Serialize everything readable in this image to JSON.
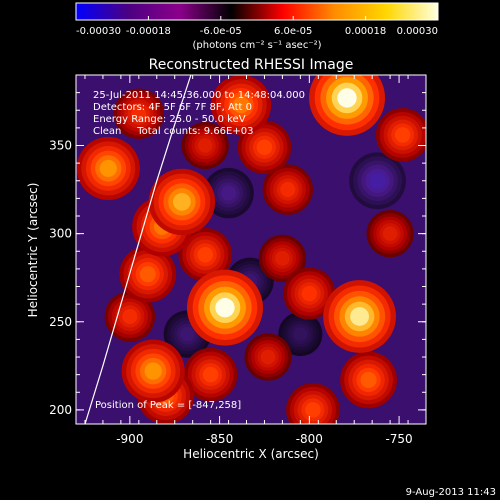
{
  "colorbar": {
    "tick_labels": [
      "-0.00030",
      "-0.00018",
      "-6.0e-05",
      "6.0e-05",
      "0.00018",
      "0.00030"
    ],
    "ticks": [
      -0.0003,
      -0.00018,
      -6e-05,
      6e-05,
      0.00018,
      0.0003
    ],
    "range": [
      -0.0003,
      0.0003
    ],
    "unit_label": "(photons cm⁻² s⁻¹ asec⁻²)",
    "colors": [
      "#0000ff",
      "#4b0082",
      "#8b008b",
      "#000000",
      "#ff0000",
      "#ff8c00",
      "#ffd700",
      "#ffffe0"
    ]
  },
  "chart_data": {
    "type": "heatmap",
    "title": "Reconstructed RHESSI Image",
    "annotations": [
      "25-Jul-2011 14:45:36.000 to 14:48:04.000",
      "Detectors: 4F 5F 6F 7F 8F, Att 0",
      "Energy Range: 25.0 - 50.0 keV",
      "Clean     Total counts: 9.66E+03"
    ],
    "peak_label": "Position of Peak = [-847,258]",
    "peak": [
      -847,
      258
    ],
    "xlabel": "Heliocentric X (arcsec)",
    "ylabel": "Heliocentric Y (arcsec)",
    "xlim": [
      -930,
      -735
    ],
    "ylim": [
      192,
      390
    ],
    "xticks": [
      -900,
      -850,
      -800,
      -750
    ],
    "yticks": [
      200,
      250,
      300,
      350
    ],
    "xtick_labels": [
      "-900",
      "-850",
      "-800",
      "-750"
    ],
    "ytick_labels": [
      "200",
      "250",
      "300",
      "350"
    ],
    "limb_curve": [
      [
        -925,
        192
      ],
      [
        -915,
        225
      ],
      [
        -905,
        260
      ],
      [
        -895,
        295
      ],
      [
        -885,
        330
      ],
      [
        -875,
        362
      ],
      [
        -866,
        390
      ]
    ],
    "sources": [
      {
        "x": -847,
        "y": 258,
        "v": 0.0003
      },
      {
        "x": -912,
        "y": 337,
        "v": 0.00022
      },
      {
        "x": -871,
        "y": 318,
        "v": 0.00024
      },
      {
        "x": -882,
        "y": 304,
        "v": 0.0002
      },
      {
        "x": -890,
        "y": 277,
        "v": 0.00018
      },
      {
        "x": -887,
        "y": 222,
        "v": 0.00022
      },
      {
        "x": -880,
        "y": 208,
        "v": 0.00018
      },
      {
        "x": -900,
        "y": 253,
        "v": 0.00014
      },
      {
        "x": -855,
        "y": 220,
        "v": 0.00016
      },
      {
        "x": -838,
        "y": 373,
        "v": 0.0002
      },
      {
        "x": -825,
        "y": 349,
        "v": 0.00016
      },
      {
        "x": -779,
        "y": 377,
        "v": 0.0003
      },
      {
        "x": -812,
        "y": 325,
        "v": 0.00014
      },
      {
        "x": -815,
        "y": 286,
        "v": 0.00012
      },
      {
        "x": -800,
        "y": 266,
        "v": 0.00015
      },
      {
        "x": -772,
        "y": 253,
        "v": 0.00028
      },
      {
        "x": -748,
        "y": 356,
        "v": 0.00016
      },
      {
        "x": -755,
        "y": 300,
        "v": 0.00012
      },
      {
        "x": -767,
        "y": 217,
        "v": 0.00018
      },
      {
        "x": -798,
        "y": 200,
        "v": 0.00016
      },
      {
        "x": -823,
        "y": 230,
        "v": 0.00012
      },
      {
        "x": -858,
        "y": 288,
        "v": 0.00016
      },
      {
        "x": -858,
        "y": 350,
        "v": 0.00012
      },
      {
        "x": -895,
        "y": 368,
        "v": 0.00014
      },
      {
        "x": -762,
        "y": 330,
        "v": -0.00018
      },
      {
        "x": -845,
        "y": 323,
        "v": -0.00014
      },
      {
        "x": -833,
        "y": 273,
        "v": -0.00012
      },
      {
        "x": -868,
        "y": 243,
        "v": -0.00012
      },
      {
        "x": -805,
        "y": 243,
        "v": -0.0001
      }
    ]
  },
  "footer": {
    "date": "9-Aug-2013 11:43"
  }
}
